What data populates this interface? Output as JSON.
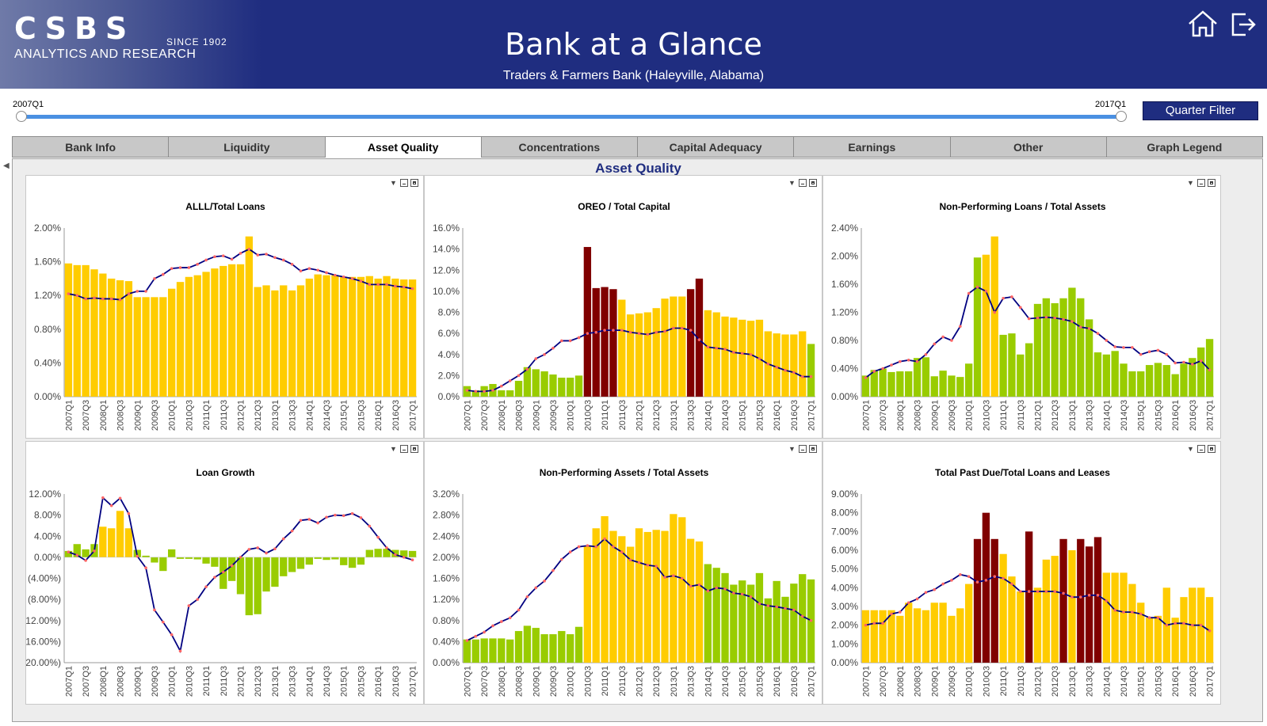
{
  "header": {
    "logo_text": "CSBS",
    "logo_since": "SINCE 1902",
    "logo_subtitle": "ANALYTICS AND RESEARCH",
    "title": "Bank at a Glance",
    "bank_name": "Traders & Farmers Bank (Haleyville, Alabama)"
  },
  "slider": {
    "start_label": "2007Q1",
    "end_label": "2017Q1",
    "filter_button": "Quarter Filter"
  },
  "tabs": [
    {
      "label": "Bank Info",
      "active": false
    },
    {
      "label": "Liquidity",
      "active": false
    },
    {
      "label": "Asset Quality",
      "active": true
    },
    {
      "label": "Concentrations",
      "active": false
    },
    {
      "label": "Capital Adequacy",
      "active": false
    },
    {
      "label": "Earnings",
      "active": false
    },
    {
      "label": "Other",
      "active": false
    },
    {
      "label": "Graph Legend",
      "active": false
    }
  ],
  "section_title": "Asset Quality",
  "colors": {
    "yellow": "#ffcc00",
    "green": "#99cc00",
    "red": "#800000",
    "line": "#000080",
    "marker": "#ff6666"
  },
  "chart_data": [
    {
      "type": "bar",
      "title": "ALLL/Total Loans",
      "ylim": [
        0,
        2.0
      ],
      "yticks": [
        "2.00%",
        "1.60%",
        "1.20%",
        "0.80%",
        "0.40%",
        "0.00%"
      ],
      "xlabels": [
        "2007Q1",
        "2007Q3",
        "2008Q1",
        "2008Q3",
        "2009Q1",
        "2009Q3",
        "2010Q1",
        "2010Q3",
        "2011Q1",
        "2011Q3",
        "2012Q1",
        "2012Q3",
        "2013Q1",
        "2013Q3",
        "2014Q1",
        "2014Q3",
        "2015Q1",
        "2015Q3",
        "2016Q1",
        "2016Q3",
        "2017Q1"
      ],
      "series": [
        {
          "values": [
            1.58,
            1.56,
            1.56,
            1.51,
            1.46,
            1.4,
            1.38,
            1.37,
            1.18,
            1.18,
            1.18,
            1.18,
            1.28,
            1.36,
            1.42,
            1.44,
            1.48,
            1.52,
            1.55,
            1.57,
            1.57,
            1.9,
            1.3,
            1.32,
            1.26,
            1.32,
            1.26,
            1.32,
            1.4,
            1.45,
            1.44,
            1.44,
            1.42,
            1.42,
            1.42,
            1.43,
            1.4,
            1.43,
            1.4,
            1.39,
            1.39
          ],
          "colors": [
            "y",
            "y",
            "y",
            "y",
            "y",
            "y",
            "y",
            "y",
            "y",
            "y",
            "y",
            "y",
            "y",
            "y",
            "y",
            "y",
            "y",
            "y",
            "y",
            "y",
            "y",
            "y",
            "y",
            "y",
            "y",
            "y",
            "y",
            "y",
            "y",
            "y",
            "y",
            "y",
            "y",
            "y",
            "y",
            "y",
            "y",
            "y",
            "y",
            "y",
            "y"
          ]
        },
        {
          "line": [
            1.22,
            1.2,
            1.16,
            1.17,
            1.16,
            1.16,
            1.15,
            1.22,
            1.25,
            1.25,
            1.4,
            1.45,
            1.52,
            1.53,
            1.53,
            1.57,
            1.62,
            1.66,
            1.67,
            1.63,
            1.7,
            1.75,
            1.68,
            1.69,
            1.65,
            1.62,
            1.57,
            1.49,
            1.52,
            1.5,
            1.47,
            1.44,
            1.42,
            1.4,
            1.37,
            1.33,
            1.33,
            1.33,
            1.31,
            1.3,
            1.28
          ]
        }
      ]
    },
    {
      "type": "bar",
      "title": "OREO / Total Capital",
      "ylim": [
        0,
        16
      ],
      "yticks": [
        "16.0%",
        "14.0%",
        "12.0%",
        "10.0%",
        "8.0%",
        "6.0%",
        "4.0%",
        "2.0%",
        "0.0%"
      ],
      "xlabels": [
        "2007Q1",
        "2007Q3",
        "2008Q1",
        "2008Q3",
        "2009Q1",
        "2009Q3",
        "2010Q1",
        "2010Q3",
        "2011Q1",
        "2011Q3",
        "2012Q1",
        "2012Q3",
        "2013Q1",
        "2013Q3",
        "2014Q1",
        "2014Q3",
        "2015Q1",
        "2015Q3",
        "2016Q1",
        "2016Q3",
        "2017Q1"
      ],
      "series": [
        {
          "values": [
            1.0,
            0.6,
            1.0,
            1.2,
            0.6,
            0.6,
            1.5,
            2.8,
            2.6,
            2.4,
            2.1,
            1.8,
            1.8,
            2.0,
            14.2,
            10.3,
            10.4,
            10.2,
            9.2,
            7.8,
            7.9,
            8.0,
            8.4,
            9.3,
            9.5,
            9.5,
            10.2,
            11.2,
            8.2,
            8.0,
            7.6,
            7.5,
            7.3,
            7.2,
            7.3,
            6.2,
            6.0,
            5.9,
            5.9,
            6.2,
            5.0
          ],
          "colors": [
            "g",
            "g",
            "g",
            "g",
            "g",
            "g",
            "g",
            "g",
            "g",
            "g",
            "g",
            "g",
            "g",
            "g",
            "r",
            "r",
            "r",
            "r",
            "y",
            "y",
            "y",
            "y",
            "y",
            "y",
            "y",
            "y",
            "r",
            "r",
            "y",
            "y",
            "y",
            "y",
            "y",
            "y",
            "y",
            "y",
            "y",
            "y",
            "y",
            "y",
            "g"
          ]
        },
        {
          "line": [
            0.6,
            0.5,
            0.5,
            0.6,
            1.0,
            1.5,
            2.0,
            2.6,
            3.6,
            4.0,
            4.6,
            5.3,
            5.3,
            5.6,
            6.0,
            6.1,
            6.3,
            6.3,
            6.3,
            6.1,
            6.0,
            5.9,
            6.1,
            6.2,
            6.5,
            6.5,
            6.3,
            5.4,
            4.7,
            4.6,
            4.5,
            4.2,
            4.1,
            4.0,
            3.6,
            3.1,
            2.8,
            2.5,
            2.3,
            1.9,
            1.9
          ]
        }
      ]
    },
    {
      "type": "bar",
      "title": "Non-Performing Loans / Total Assets",
      "ylim": [
        0,
        2.4
      ],
      "yticks": [
        "2.40%",
        "2.00%",
        "1.60%",
        "1.20%",
        "0.80%",
        "0.40%",
        "0.00%"
      ],
      "xlabels": [
        "2007Q1",
        "2007Q3",
        "2008Q1",
        "2008Q3",
        "2009Q1",
        "2009Q3",
        "2010Q1",
        "2010Q3",
        "2011Q1",
        "2011Q3",
        "2012Q1",
        "2012Q3",
        "2013Q1",
        "2013Q3",
        "2014Q1",
        "2014Q3",
        "2015Q1",
        "2015Q3",
        "2016Q1",
        "2016Q3",
        "2017Q1"
      ],
      "series": [
        {
          "values": [
            0.3,
            0.38,
            0.4,
            0.35,
            0.36,
            0.36,
            0.55,
            0.56,
            0.29,
            0.37,
            0.3,
            0.28,
            0.47,
            1.98,
            2.02,
            2.28,
            0.88,
            0.9,
            0.6,
            0.76,
            1.32,
            1.4,
            1.33,
            1.4,
            1.55,
            1.4,
            1.1,
            0.63,
            0.6,
            0.65,
            0.47,
            0.36,
            0.36,
            0.45,
            0.48,
            0.45,
            0.32,
            0.47,
            0.55,
            0.7,
            0.82
          ],
          "colors": [
            "g",
            "g",
            "g",
            "g",
            "g",
            "g",
            "g",
            "g",
            "g",
            "g",
            "g",
            "g",
            "g",
            "g",
            "y",
            "y",
            "g",
            "g",
            "g",
            "g",
            "g",
            "g",
            "g",
            "g",
            "g",
            "g",
            "g",
            "g",
            "g",
            "g",
            "g",
            "g",
            "g",
            "g",
            "g",
            "g",
            "g",
            "g",
            "g",
            "g",
            "g"
          ]
        },
        {
          "line": [
            0.27,
            0.36,
            0.4,
            0.45,
            0.5,
            0.52,
            0.5,
            0.6,
            0.75,
            0.85,
            0.8,
            1.0,
            1.47,
            1.56,
            1.5,
            1.2,
            1.4,
            1.42,
            1.27,
            1.11,
            1.12,
            1.13,
            1.12,
            1.1,
            1.07,
            0.99,
            0.97,
            0.9,
            0.8,
            0.71,
            0.7,
            0.7,
            0.6,
            0.64,
            0.66,
            0.6,
            0.48,
            0.49,
            0.46,
            0.51,
            0.38
          ]
        }
      ]
    },
    {
      "type": "bar",
      "title": "Loan Growth",
      "ylim": [
        -20,
        12
      ],
      "yticks": [
        "12.00%",
        "8.00%",
        "4.00%",
        "0.00%",
        "(4.00%)",
        "(8.00%)",
        "(12.00%)",
        "(16.00%)",
        "(20.00%)"
      ],
      "xlabels": [
        "2007Q1",
        "2007Q3",
        "2008Q1",
        "2008Q3",
        "2009Q1",
        "2009Q3",
        "2010Q1",
        "2010Q3",
        "2011Q1",
        "2011Q3",
        "2012Q1",
        "2012Q3",
        "2013Q1",
        "2013Q3",
        "2014Q1",
        "2014Q3",
        "2015Q1",
        "2015Q3",
        "2016Q1",
        "2016Q3",
        "2017Q1"
      ],
      "series": [
        {
          "values": [
            1.2,
            2.5,
            1.5,
            2.5,
            5.8,
            5.5,
            8.8,
            5.5,
            1.4,
            0.3,
            -1.0,
            -2.6,
            1.5,
            -0.3,
            -0.3,
            -0.4,
            -1.2,
            -1.8,
            -6.0,
            -4.5,
            -7.0,
            -11.0,
            -10.8,
            -6.5,
            -5.6,
            -3.6,
            -2.8,
            -2.2,
            -1.4,
            -0.3,
            -0.5,
            -0.4,
            -1.5,
            -2.0,
            -1.4,
            1.4,
            1.6,
            1.6,
            1.4,
            1.3,
            1.2
          ],
          "colors": [
            "g",
            "g",
            "g",
            "g",
            "y",
            "y",
            "y",
            "y",
            "g",
            "g",
            "g",
            "g",
            "g",
            "g",
            "g",
            "g",
            "g",
            "g",
            "g",
            "g",
            "g",
            "g",
            "g",
            "g",
            "g",
            "g",
            "g",
            "g",
            "g",
            "g",
            "g",
            "g",
            "g",
            "g",
            "g",
            "g",
            "g",
            "g",
            "g",
            "g",
            "g"
          ]
        },
        {
          "line": [
            1.0,
            0.4,
            -0.6,
            1.2,
            11.3,
            9.8,
            11.2,
            8.3,
            0.2,
            -2.0,
            -10.0,
            -12.3,
            -14.7,
            -17.8,
            -9.2,
            -8.0,
            -5.6,
            -3.8,
            -2.8,
            -1.6,
            0.0,
            1.5,
            1.8,
            0.8,
            1.6,
            3.5,
            5.0,
            7.0,
            7.2,
            6.5,
            7.6,
            8.0,
            7.9,
            8.3,
            7.5,
            5.9,
            3.8,
            1.8,
            0.5,
            0.0,
            -0.5
          ]
        }
      ]
    },
    {
      "type": "bar",
      "title": "Non-Performing Assets / Total Assets",
      "ylim": [
        0,
        3.2
      ],
      "yticks": [
        "3.20%",
        "2.80%",
        "2.40%",
        "2.00%",
        "1.60%",
        "1.20%",
        "0.80%",
        "0.40%",
        "0.00%"
      ],
      "xlabels": [
        "2007Q1",
        "2007Q3",
        "2008Q1",
        "2008Q3",
        "2009Q1",
        "2009Q3",
        "2010Q1",
        "2010Q3",
        "2011Q1",
        "2011Q3",
        "2012Q1",
        "2012Q3",
        "2013Q1",
        "2013Q3",
        "2014Q1",
        "2014Q3",
        "2015Q1",
        "2015Q3",
        "2016Q1",
        "2016Q3",
        "2017Q1"
      ],
      "series": [
        {
          "values": [
            0.44,
            0.44,
            0.46,
            0.46,
            0.46,
            0.44,
            0.6,
            0.7,
            0.66,
            0.54,
            0.54,
            0.6,
            0.54,
            0.68,
            2.22,
            2.55,
            2.78,
            2.5,
            2.4,
            2.2,
            2.55,
            2.48,
            2.52,
            2.5,
            2.82,
            2.76,
            2.35,
            2.3,
            1.87,
            1.8,
            1.7,
            1.48,
            1.56,
            1.48,
            1.7,
            1.22,
            1.55,
            1.25,
            1.5,
            1.68,
            1.58
          ],
          "colors": [
            "g",
            "g",
            "g",
            "g",
            "g",
            "g",
            "g",
            "g",
            "g",
            "g",
            "g",
            "g",
            "g",
            "g",
            "y",
            "y",
            "y",
            "y",
            "y",
            "y",
            "y",
            "y",
            "y",
            "y",
            "y",
            "y",
            "y",
            "y",
            "g",
            "g",
            "g",
            "g",
            "g",
            "g",
            "g",
            "g",
            "g",
            "g",
            "g",
            "g",
            "g"
          ]
        },
        {
          "line": [
            0.42,
            0.5,
            0.58,
            0.7,
            0.78,
            0.85,
            1.0,
            1.25,
            1.42,
            1.55,
            1.75,
            1.96,
            2.1,
            2.2,
            2.22,
            2.2,
            2.35,
            2.2,
            2.1,
            1.95,
            1.9,
            1.85,
            1.83,
            1.62,
            1.65,
            1.6,
            1.45,
            1.48,
            1.36,
            1.42,
            1.4,
            1.32,
            1.3,
            1.25,
            1.12,
            1.08,
            1.06,
            1.03,
            1.0,
            0.88,
            0.8
          ]
        }
      ]
    },
    {
      "type": "bar",
      "title": "Total Past Due/Total Loans and Leases",
      "ylim": [
        0,
        9
      ],
      "yticks": [
        "9.00%",
        "8.00%",
        "7.00%",
        "6.00%",
        "5.00%",
        "4.00%",
        "3.00%",
        "2.00%",
        "1.00%",
        "0.00%"
      ],
      "xlabels": [
        "2007Q1",
        "2007Q3",
        "2008Q1",
        "2008Q3",
        "2009Q1",
        "2009Q3",
        "2010Q1",
        "2010Q3",
        "2011Q1",
        "2011Q3",
        "2012Q1",
        "2012Q3",
        "2013Q1",
        "2013Q3",
        "2014Q1",
        "2014Q3",
        "2015Q1",
        "2015Q3",
        "2016Q1",
        "2016Q3",
        "2017Q1"
      ],
      "series": [
        {
          "values": [
            2.8,
            2.8,
            2.8,
            2.8,
            2.5,
            3.2,
            2.9,
            2.8,
            3.2,
            3.2,
            2.5,
            2.9,
            4.2,
            6.6,
            8.0,
            6.6,
            5.8,
            4.6,
            3.8,
            7.0,
            4.0,
            5.5,
            5.7,
            6.6,
            6.0,
            6.6,
            6.2,
            6.7,
            4.8,
            4.8,
            4.8,
            4.2,
            3.2,
            2.4,
            2.5,
            4.0,
            2.4,
            3.5,
            4.0,
            4.0,
            3.5
          ],
          "colors": [
            "y",
            "y",
            "y",
            "y",
            "y",
            "y",
            "y",
            "y",
            "y",
            "y",
            "y",
            "y",
            "y",
            "r",
            "r",
            "r",
            "y",
            "y",
            "y",
            "r",
            "y",
            "y",
            "y",
            "r",
            "y",
            "r",
            "r",
            "r",
            "y",
            "y",
            "y",
            "y",
            "y",
            "y",
            "y",
            "y",
            "y",
            "y",
            "y",
            "y",
            "y"
          ]
        },
        {
          "line": [
            2.0,
            2.1,
            2.1,
            2.6,
            2.7,
            3.2,
            3.4,
            3.75,
            3.9,
            4.2,
            4.4,
            4.7,
            4.6,
            4.3,
            4.4,
            4.6,
            4.5,
            4.2,
            3.8,
            3.8,
            3.8,
            3.8,
            3.8,
            3.7,
            3.5,
            3.5,
            3.6,
            3.6,
            3.3,
            2.8,
            2.7,
            2.7,
            2.6,
            2.4,
            2.4,
            2.0,
            2.1,
            2.1,
            2.0,
            2.0,
            1.7
          ]
        }
      ]
    }
  ]
}
